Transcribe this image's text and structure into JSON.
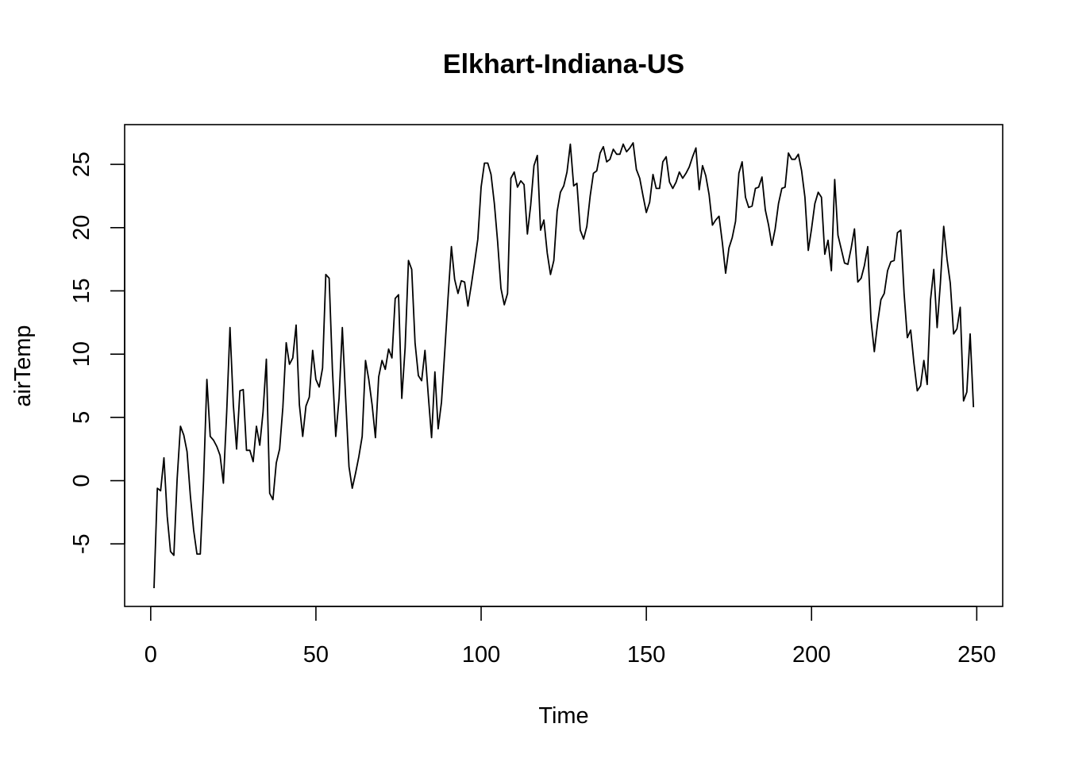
{
  "chart_data": {
    "type": "line",
    "title": "Elkhart-Indiana-US",
    "xlabel": "Time",
    "ylabel": "airTemp",
    "xlim": [
      1,
      248
    ],
    "ylim": [
      -8.5,
      26.7
    ],
    "xticks": [
      0,
      50,
      100,
      150,
      200,
      250
    ],
    "yticks": [
      -5,
      0,
      5,
      10,
      15,
      20,
      25
    ],
    "grid": false,
    "series": [
      {
        "color": "#000000",
        "x_start": 1,
        "values": [
          -8.5,
          -0.6,
          -0.8,
          1.8,
          -2.8,
          -5.6,
          -5.9,
          0.1,
          4.3,
          3.6,
          2.3,
          -1.2,
          -3.9,
          -5.8,
          -5.8,
          0.0,
          8.0,
          3.5,
          3.2,
          2.7,
          2.0,
          -0.2,
          5.5,
          12.1,
          6.0,
          2.5,
          7.1,
          7.2,
          2.4,
          2.4,
          1.5,
          4.3,
          2.8,
          5.4,
          9.6,
          -1.0,
          -1.5,
          1.4,
          2.5,
          5.8,
          10.9,
          9.2,
          9.7,
          12.3,
          6.0,
          3.5,
          5.9,
          6.6,
          10.3,
          8.0,
          7.4,
          8.9,
          16.3,
          16.0,
          8.8,
          3.5,
          6.5,
          12.1,
          6.5,
          1.1,
          -0.6,
          0.6,
          1.9,
          3.5,
          9.5,
          8.0,
          6.0,
          3.4,
          8.2,
          9.5,
          8.8,
          10.4,
          9.7,
          14.4,
          14.7,
          6.5,
          10.5,
          17.4,
          16.7,
          10.9,
          8.3,
          7.9,
          10.3,
          6.8,
          3.4,
          8.6,
          4.1,
          6.2,
          10.3,
          14.5,
          18.5,
          15.9,
          14.8,
          15.8,
          15.7,
          13.8,
          15.4,
          17.2,
          19.1,
          23.2,
          25.1,
          25.1,
          24.2,
          21.9,
          18.9,
          15.2,
          13.9,
          14.8,
          23.9,
          24.4,
          23.2,
          23.7,
          23.4,
          19.5,
          21.8,
          24.9,
          25.7,
          19.8,
          20.6,
          18.0,
          16.3,
          17.4,
          21.3,
          22.8,
          23.3,
          24.4,
          26.6,
          23.3,
          23.5,
          19.8,
          19.1,
          20.1,
          22.5,
          24.3,
          24.5,
          25.9,
          26.4,
          25.2,
          25.4,
          26.2,
          25.8,
          25.8,
          26.6,
          26.0,
          26.3,
          26.7,
          24.6,
          23.9,
          22.5,
          21.2,
          22.0,
          24.2,
          23.1,
          23.1,
          25.2,
          25.6,
          23.6,
          23.1,
          23.6,
          24.4,
          23.9,
          24.3,
          24.8,
          25.6,
          26.3,
          23.0,
          24.9,
          24.1,
          22.6,
          20.2,
          20.6,
          20.9,
          18.8,
          16.4,
          18.4,
          19.2,
          20.5,
          24.3,
          25.2,
          22.4,
          21.6,
          21.7,
          23.1,
          23.2,
          24.0,
          21.4,
          20.2,
          18.6,
          19.9,
          21.9,
          23.1,
          23.2,
          25.9,
          25.4,
          25.4,
          25.8,
          24.5,
          22.4,
          18.2,
          19.9,
          21.9,
          22.8,
          22.4,
          17.9,
          19.0,
          16.6,
          23.8,
          19.4,
          18.3,
          17.2,
          17.1,
          18.4,
          19.9,
          15.7,
          16.0,
          17.0,
          18.5,
          12.7,
          10.2,
          12.5,
          14.3,
          14.8,
          16.6,
          17.3,
          17.4,
          19.6,
          19.8,
          14.8,
          11.3,
          11.9,
          9.3,
          7.1,
          7.5,
          9.5,
          7.6,
          14.3,
          16.7,
          12.1,
          15.6,
          20.1,
          17.5,
          15.6,
          11.6,
          12.0,
          13.7,
          6.3,
          7.0,
          11.6,
          5.8
        ]
      }
    ]
  }
}
